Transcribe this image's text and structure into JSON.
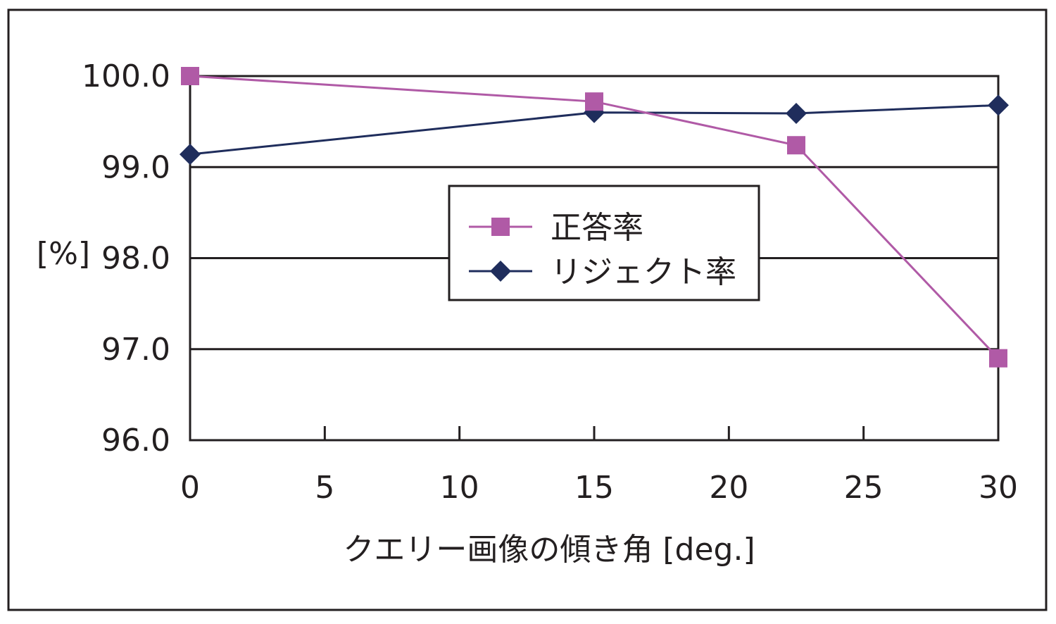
{
  "chart_data": {
    "type": "line",
    "title": "",
    "xlabel": "クエリー画像の傾き角 [deg.]",
    "ylabel": "[%]",
    "xlim": [
      0,
      30
    ],
    "ylim": [
      96.0,
      100.0
    ],
    "x_ticks": [
      "0",
      "5",
      "10",
      "15",
      "20",
      "25",
      "30"
    ],
    "y_ticks": [
      "96.0",
      "97.0",
      "98.0",
      "99.0",
      "100.0"
    ],
    "grid": "horizontal",
    "legend_position": "center",
    "series": [
      {
        "name": "正答率",
        "color": "#b05aa6",
        "marker": "square",
        "x": [
          0,
          15,
          22.5,
          30
        ],
        "values": [
          100.0,
          99.72,
          99.24,
          96.9
        ]
      },
      {
        "name": "リジェクト率",
        "color": "#1f2d5c",
        "marker": "diamond",
        "x": [
          0,
          15,
          22.5,
          30
        ],
        "values": [
          99.14,
          99.6,
          99.59,
          99.68
        ]
      }
    ]
  }
}
